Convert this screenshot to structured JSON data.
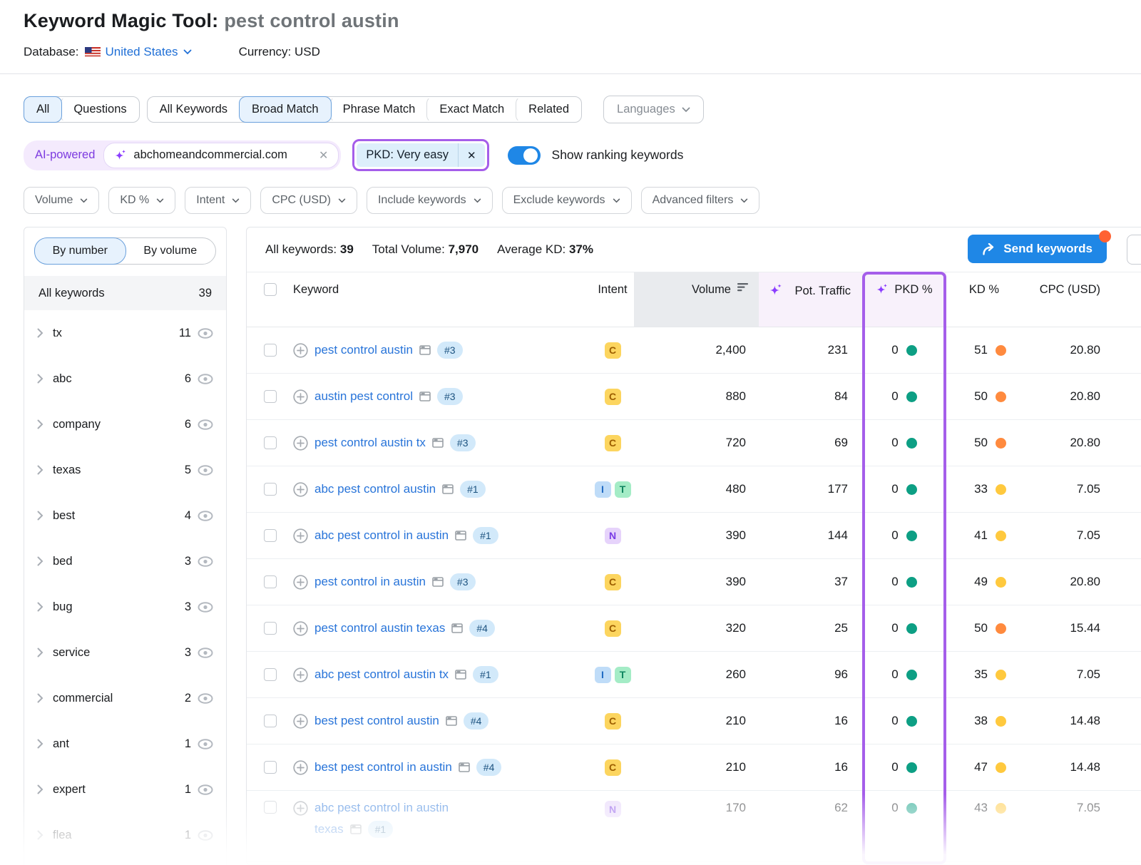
{
  "header": {
    "title": "Keyword Magic Tool:",
    "query": "pest control austin",
    "database_label": "Database:",
    "database_value": "United States",
    "currency_label": "Currency:",
    "currency_value": "USD"
  },
  "tabs": {
    "group1": [
      "All",
      "Questions"
    ],
    "group1_selected": "All",
    "group2": [
      "All Keywords",
      "Broad Match",
      "Phrase Match",
      "Exact Match",
      "Related"
    ],
    "group2_selected": "Broad Match",
    "languages_label": "Languages"
  },
  "ai_filter": {
    "label": "AI-powered",
    "domain": "abchomeandcommercial.com",
    "pkd_chip": "PKD: Very easy",
    "toggle_label": "Show ranking keywords",
    "toggle_on": true
  },
  "filters": [
    "Volume",
    "KD %",
    "Intent",
    "CPC (USD)",
    "Include keywords",
    "Exclude keywords",
    "Advanced filters"
  ],
  "sidebar": {
    "view_tabs": [
      "By number",
      "By volume"
    ],
    "selected_view": "By number",
    "all_label": "All keywords",
    "all_count": "39",
    "groups": [
      {
        "label": "tx",
        "count": "11"
      },
      {
        "label": "abc",
        "count": "6"
      },
      {
        "label": "company",
        "count": "6"
      },
      {
        "label": "texas",
        "count": "5"
      },
      {
        "label": "best",
        "count": "4"
      },
      {
        "label": "bed",
        "count": "3"
      },
      {
        "label": "bug",
        "count": "3"
      },
      {
        "label": "service",
        "count": "3"
      },
      {
        "label": "commercial",
        "count": "2"
      },
      {
        "label": "ant",
        "count": "1"
      },
      {
        "label": "expert",
        "count": "1"
      },
      {
        "label": "flea",
        "count": "1",
        "faded": true
      }
    ]
  },
  "summary": {
    "all_keywords_label": "All keywords:",
    "all_keywords_value": "39",
    "total_volume_label": "Total Volume:",
    "total_volume_value": "7,970",
    "avg_kd_label": "Average KD:",
    "avg_kd_value": "37%",
    "send_button": "Send keywords"
  },
  "table": {
    "col_keyword": "Keyword",
    "col_intent": "Intent",
    "col_volume": "Volume",
    "col_pot_traffic": "Pot. Traffic",
    "col_pkd": "PKD %",
    "col_kd": "KD %",
    "col_cpc": "CPC (USD)",
    "rows": [
      {
        "keyword": "pest control austin",
        "rank": "#3",
        "intents": [
          "C"
        ],
        "volume": "2,400",
        "pot_traffic": "231",
        "pkd": "0",
        "pkd_dot": "green",
        "kd": "51",
        "kd_dot": "orange",
        "cpc": "20.80"
      },
      {
        "keyword": "austin pest control",
        "rank": "#3",
        "intents": [
          "C"
        ],
        "volume": "880",
        "pot_traffic": "84",
        "pkd": "0",
        "pkd_dot": "green",
        "kd": "50",
        "kd_dot": "orange",
        "cpc": "20.80"
      },
      {
        "keyword": "pest control austin tx",
        "rank": "#3",
        "intents": [
          "C"
        ],
        "volume": "720",
        "pot_traffic": "69",
        "pkd": "0",
        "pkd_dot": "green",
        "kd": "50",
        "kd_dot": "orange",
        "cpc": "20.80"
      },
      {
        "keyword": "abc pest control austin",
        "rank": "#1",
        "intents": [
          "I",
          "T"
        ],
        "volume": "480",
        "pot_traffic": "177",
        "pkd": "0",
        "pkd_dot": "green",
        "kd": "33",
        "kd_dot": "yellow",
        "cpc": "7.05"
      },
      {
        "keyword": "abc pest control in austin",
        "rank": "#1",
        "intents": [
          "N"
        ],
        "volume": "390",
        "pot_traffic": "144",
        "pkd": "0",
        "pkd_dot": "green",
        "kd": "41",
        "kd_dot": "yellow",
        "cpc": "7.05"
      },
      {
        "keyword": "pest control in austin",
        "rank": "#3",
        "intents": [
          "C"
        ],
        "volume": "390",
        "pot_traffic": "37",
        "pkd": "0",
        "pkd_dot": "green",
        "kd": "49",
        "kd_dot": "yellow",
        "cpc": "20.80"
      },
      {
        "keyword": "pest control austin texas",
        "rank": "#4",
        "intents": [
          "C"
        ],
        "volume": "320",
        "pot_traffic": "25",
        "pkd": "0",
        "pkd_dot": "green",
        "kd": "50",
        "kd_dot": "orange",
        "cpc": "15.44"
      },
      {
        "keyword": "abc pest control austin tx",
        "rank": "#1",
        "intents": [
          "I",
          "T"
        ],
        "volume": "260",
        "pot_traffic": "96",
        "pkd": "0",
        "pkd_dot": "green",
        "kd": "35",
        "kd_dot": "yellow",
        "cpc": "7.05"
      },
      {
        "keyword": "best pest control austin",
        "rank": "#4",
        "intents": [
          "C"
        ],
        "volume": "210",
        "pot_traffic": "16",
        "pkd": "0",
        "pkd_dot": "green",
        "kd": "38",
        "kd_dot": "yellow",
        "cpc": "14.48"
      },
      {
        "keyword": "best pest control in austin",
        "rank": "#4",
        "intents": [
          "C"
        ],
        "volume": "210",
        "pot_traffic": "16",
        "pkd": "0",
        "pkd_dot": "green",
        "kd": "47",
        "kd_dot": "yellow",
        "cpc": "14.48"
      },
      {
        "keyword": "abc pest control in austin",
        "keyword2": "texas",
        "rank": "#1",
        "intents": [
          "N"
        ],
        "volume": "170",
        "pot_traffic": "62",
        "pkd": "0",
        "pkd_dot": "green",
        "kd": "43",
        "kd_dot": "yellow",
        "cpc": "7.05",
        "faded": true,
        "tall": true
      }
    ]
  },
  "colors": {
    "accent_blue": "#1f87e6",
    "link_blue": "#2874d9",
    "highlight_purple": "#a55eea",
    "sparkle_purple": "#8b3dff",
    "notification_orange": "#ff6233",
    "dots": {
      "green": "#0d9f84",
      "orange": "#ff8a3e",
      "yellow": "#ffc93e"
    },
    "intent": {
      "C": {
        "bg": "#fcd55f",
        "fg": "#9c5d00"
      },
      "I": {
        "bg": "#bfdcf8",
        "fg": "#1f6ac2"
      },
      "T": {
        "bg": "#a4ecc6",
        "fg": "#0f8560"
      },
      "N": {
        "bg": "#e6d3fb",
        "fg": "#7b3ce6"
      }
    }
  }
}
